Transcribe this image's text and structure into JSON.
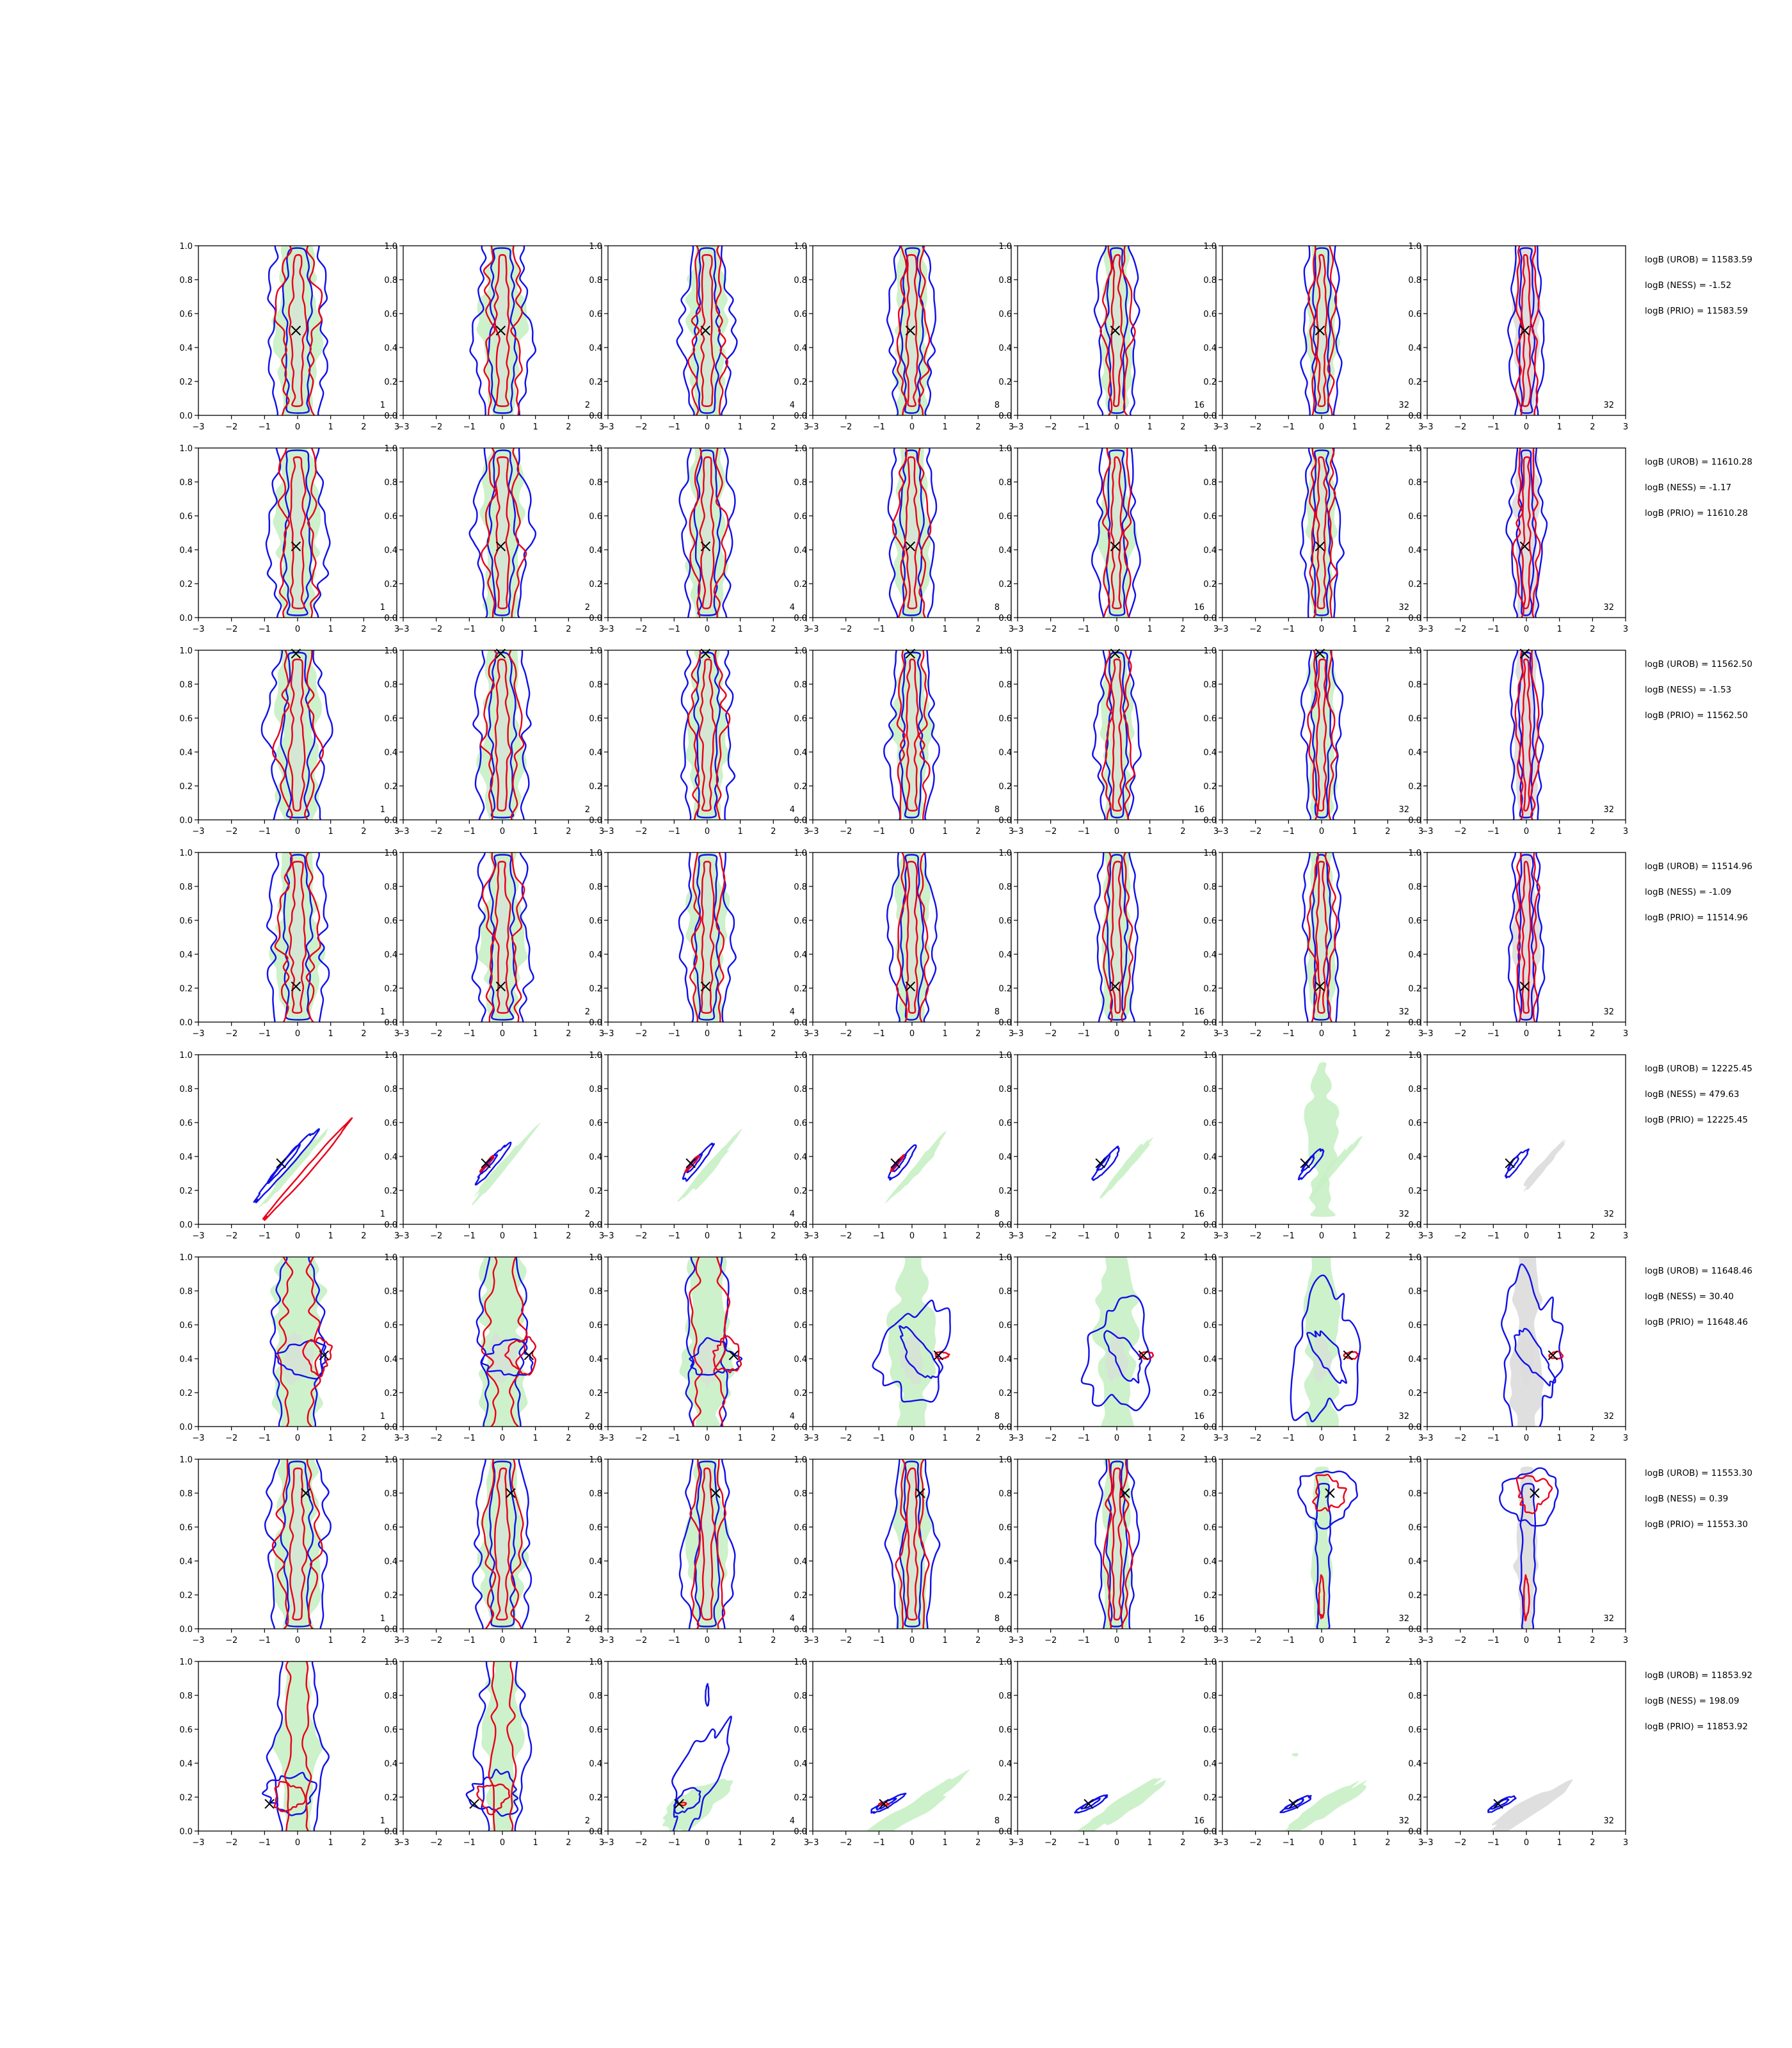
{
  "chart_data": {
    "type": "contour-grid",
    "rows": 8,
    "columns": 7,
    "column_labels": [
      "1",
      "2",
      "4",
      "8",
      "16",
      "32",
      "32"
    ],
    "xlim": [
      -3,
      3
    ],
    "ylim": [
      0,
      1
    ],
    "x_ticks": [
      "−3",
      "−2",
      "−1",
      "0",
      "1",
      "2",
      "3"
    ],
    "y_ticks": [
      "0.0",
      "0.2",
      "0.4",
      "0.6",
      "0.8",
      "1.0"
    ],
    "colors": {
      "green_fill": "#c8efc4",
      "grey_fill": "#dcdcdc",
      "red_contour": "#e8001a",
      "blue_contour": "#1010e8",
      "marker": "#000000"
    },
    "panels": [
      {
        "marker": {
          "x": -0.05,
          "y": 0.5
        },
        "kind": "v",
        "logB": [
          "logB (UROB) = 11583.59",
          "logB (NESS) = -1.52",
          "logB (PRIO) = 11583.59"
        ]
      },
      {
        "marker": {
          "x": -0.05,
          "y": 0.42
        },
        "kind": "v",
        "logB": [
          "logB (UROB) = 11610.28",
          "logB (NESS) = -1.17",
          "logB (PRIO) = 11610.28"
        ]
      },
      {
        "marker": {
          "x": -0.05,
          "y": 0.98
        },
        "kind": "v",
        "logB": [
          "logB (UROB) = 11562.50",
          "logB (NESS) = -1.53",
          "logB (PRIO) = 11562.50"
        ]
      },
      {
        "marker": {
          "x": -0.05,
          "y": 0.21
        },
        "kind": "v",
        "logB": [
          "logB (UROB) = 11514.96",
          "logB (NESS) = -1.09",
          "logB (PRIO) = 11514.96"
        ]
      },
      {
        "marker": {
          "x": -0.5,
          "y": 0.36
        },
        "kind": "h",
        "logB": [
          "logB (UROB) = 12225.45",
          "logB (NESS) = 479.63",
          "logB (PRIO) = 12225.45"
        ]
      },
      {
        "marker": {
          "x": 0.8,
          "y": 0.42
        },
        "kind": "m",
        "logB": [
          "logB (UROB) = 11648.46",
          "logB (NESS) = 30.40",
          "logB (PRIO) = 11648.46"
        ]
      },
      {
        "marker": {
          "x": 0.25,
          "y": 0.8
        },
        "kind": "u",
        "logB": [
          "logB (UROB) = 11553.30",
          "logB (NESS) = 0.39",
          "logB (PRIO) = 11553.30"
        ]
      },
      {
        "marker": {
          "x": -0.85,
          "y": 0.16
        },
        "kind": "l",
        "logB": [
          "logB (UROB) = 11853.92",
          "logB (NESS) = 198.09",
          "logB (PRIO) = 11853.92"
        ]
      }
    ]
  }
}
